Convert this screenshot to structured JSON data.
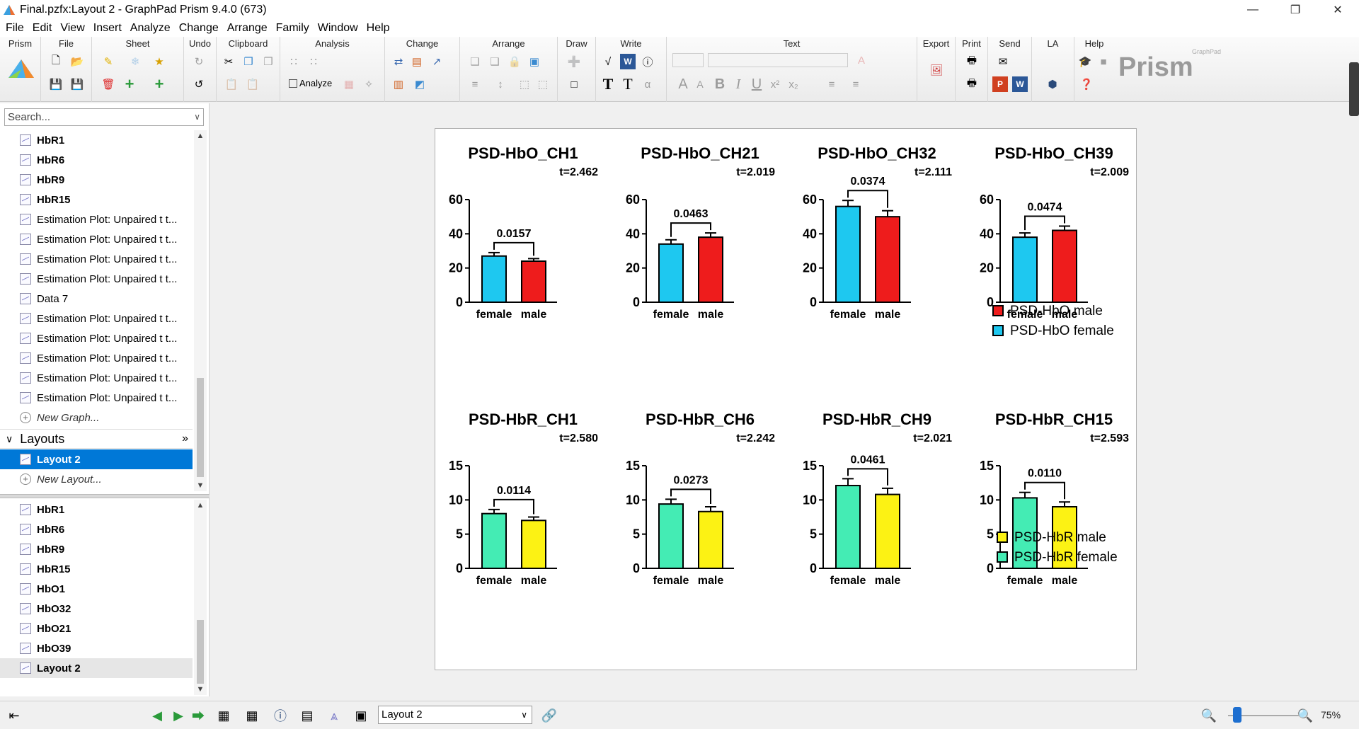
{
  "window": {
    "title": "Final.pzfx:Layout 2 - GraphPad Prism 9.4.0 (673)"
  },
  "menu": [
    "File",
    "Edit",
    "View",
    "Insert",
    "Analyze",
    "Change",
    "Arrange",
    "Family",
    "Window",
    "Help"
  ],
  "ribbon": {
    "groups": [
      "Prism",
      "File",
      "Sheet",
      "Undo",
      "Clipboard",
      "Analysis",
      "Change",
      "Arrange",
      "Draw",
      "Write",
      "Text",
      "Export",
      "Print",
      "Send",
      "LA",
      "Help"
    ],
    "analyze_label": "Analyze",
    "logo_text": "Prism",
    "logo_small": "GraphPad"
  },
  "navigator": {
    "search_placeholder": "Search...",
    "upper_items": [
      {
        "label": "HbR1",
        "bold": true
      },
      {
        "label": "HbR6",
        "bold": true
      },
      {
        "label": "HbR9",
        "bold": true
      },
      {
        "label": "HbR15",
        "bold": true
      },
      {
        "label": "Estimation Plot: Unpaired t t...",
        "bold": false
      },
      {
        "label": "Estimation Plot: Unpaired t t...",
        "bold": false
      },
      {
        "label": "Estimation Plot: Unpaired t t...",
        "bold": false
      },
      {
        "label": "Estimation Plot: Unpaired t t...",
        "bold": false
      },
      {
        "label": "Data 7",
        "bold": false
      },
      {
        "label": "Estimation Plot: Unpaired t t...",
        "bold": false
      },
      {
        "label": "Estimation Plot: Unpaired t t...",
        "bold": false
      },
      {
        "label": "Estimation Plot: Unpaired t t...",
        "bold": false
      },
      {
        "label": "Estimation Plot: Unpaired t t...",
        "bold": false
      },
      {
        "label": "Estimation Plot: Unpaired t t...",
        "bold": false
      }
    ],
    "new_graph": "New Graph...",
    "layouts_header": "Layouts",
    "layout_selected": "Layout 2",
    "new_layout": "New Layout...",
    "lower_items": [
      "HbR1",
      "HbR6",
      "HbR9",
      "HbR15",
      "HbO1",
      "HbO32",
      "HbO21",
      "HbO39"
    ],
    "lower_selected": "Layout 2"
  },
  "statusbar": {
    "layout_select_value": "Layout 2",
    "zoom": "75%"
  },
  "colors": {
    "hbo_female": "#1ec8f0",
    "hbo_male": "#ee1c1c",
    "hbr_female": "#44ecb4",
    "hbr_male": "#fcf214"
  },
  "chart_data": [
    {
      "type": "bar",
      "title": "PSD-HbO_CH1",
      "t": "t=2.462",
      "categories": [
        "female",
        "male"
      ],
      "values": [
        27,
        24
      ],
      "errors": [
        2,
        1.5
      ],
      "ylim": [
        0,
        60
      ],
      "yticks": [
        0,
        20,
        40,
        60
      ],
      "p": "0.0157",
      "colors": [
        "#1ec8f0",
        "#ee1c1c"
      ]
    },
    {
      "type": "bar",
      "title": "PSD-HbO_CH21",
      "t": "t=2.019",
      "categories": [
        "female",
        "male"
      ],
      "values": [
        34,
        38
      ],
      "errors": [
        2.5,
        2.5
      ],
      "ylim": [
        0,
        60
      ],
      "yticks": [
        0,
        20,
        40,
        60
      ],
      "p": "0.0463",
      "colors": [
        "#1ec8f0",
        "#ee1c1c"
      ]
    },
    {
      "type": "bar",
      "title": "PSD-HbO_CH32",
      "t": "t=2.111",
      "categories": [
        "female",
        "male"
      ],
      "values": [
        56,
        50
      ],
      "errors": [
        3.5,
        3.5
      ],
      "ylim": [
        0,
        60
      ],
      "yticks": [
        0,
        20,
        40,
        60
      ],
      "p": "0.0374",
      "colors": [
        "#1ec8f0",
        "#ee1c1c"
      ]
    },
    {
      "type": "bar",
      "title": "PSD-HbO_CH39",
      "t": "t=2.009",
      "categories": [
        "female",
        "male"
      ],
      "values": [
        38,
        42
      ],
      "errors": [
        2.5,
        2.5
      ],
      "ylim": [
        0,
        60
      ],
      "yticks": [
        0,
        20,
        40,
        60
      ],
      "p": "0.0474",
      "colors": [
        "#1ec8f0",
        "#ee1c1c"
      ]
    },
    {
      "type": "bar",
      "title": "PSD-HbR_CH1",
      "t": "t=2.580",
      "categories": [
        "female",
        "male"
      ],
      "values": [
        8.0,
        7.0
      ],
      "errors": [
        0.6,
        0.5
      ],
      "ylim": [
        0,
        15
      ],
      "yticks": [
        0,
        5,
        10,
        15
      ],
      "p": "0.0114",
      "colors": [
        "#44ecb4",
        "#fcf214"
      ]
    },
    {
      "type": "bar",
      "title": "PSD-HbR_CH6",
      "t": "t=2.242",
      "categories": [
        "female",
        "male"
      ],
      "values": [
        9.4,
        8.3
      ],
      "errors": [
        0.7,
        0.7
      ],
      "ylim": [
        0,
        15
      ],
      "yticks": [
        0,
        5,
        10,
        15
      ],
      "p": "0.0273",
      "colors": [
        "#44ecb4",
        "#fcf214"
      ]
    },
    {
      "type": "bar",
      "title": "PSD-HbR_CH9",
      "t": "t=2.021",
      "categories": [
        "female",
        "male"
      ],
      "values": [
        12.1,
        10.8
      ],
      "errors": [
        1.0,
        0.9
      ],
      "ylim": [
        0,
        15
      ],
      "yticks": [
        0,
        5,
        10,
        15
      ],
      "p": "0.0461",
      "colors": [
        "#44ecb4",
        "#fcf214"
      ]
    },
    {
      "type": "bar",
      "title": "PSD-HbR_CH15",
      "t": "t=2.593",
      "categories": [
        "female",
        "male"
      ],
      "values": [
        10.3,
        9.0
      ],
      "errors": [
        0.8,
        0.7
      ],
      "ylim": [
        0,
        15
      ],
      "yticks": [
        0,
        5,
        10,
        15
      ],
      "p": "0.0110",
      "colors": [
        "#44ecb4",
        "#fcf214"
      ]
    }
  ],
  "legends": [
    {
      "entries": [
        {
          "label": "PSD-HbO male",
          "color": "#ee1c1c"
        },
        {
          "label": "PSD-HbO female",
          "color": "#1ec8f0"
        }
      ]
    },
    {
      "entries": [
        {
          "label": "PSD-HbR male",
          "color": "#fcf214"
        },
        {
          "label": "PSD-HbR female",
          "color": "#44ecb4"
        }
      ]
    }
  ]
}
